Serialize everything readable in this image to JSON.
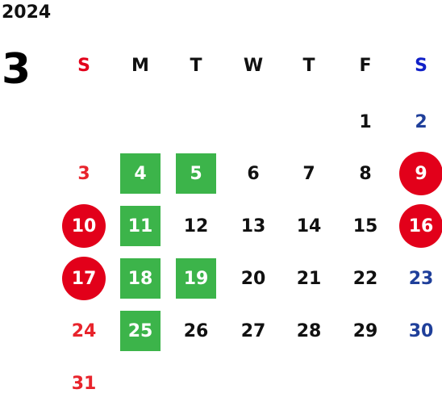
{
  "calendar": {
    "year": "2024",
    "month": "3",
    "weekdays": [
      "S",
      "M",
      "T",
      "W",
      "T",
      "F",
      "S"
    ],
    "colors": {
      "sunday": "#e8242c",
      "saturday": "#1f3f9a",
      "green_highlight": "#3cb44a",
      "red_highlight": "#e2001a"
    },
    "weeks": [
      [
        "",
        "",
        "",
        "",
        "",
        "1",
        "2"
      ],
      [
        "3",
        "4",
        "5",
        "6",
        "7",
        "8",
        "9"
      ],
      [
        "10",
        "11",
        "12",
        "13",
        "14",
        "15",
        "16"
      ],
      [
        "17",
        "18",
        "19",
        "20",
        "21",
        "22",
        "23"
      ],
      [
        "24",
        "25",
        "26",
        "27",
        "28",
        "29",
        "30"
      ],
      [
        "31",
        "",
        "",
        "",
        "",
        "",
        ""
      ]
    ],
    "green_days": [
      "4",
      "5",
      "11",
      "18",
      "19",
      "25"
    ],
    "red_days": [
      "9",
      "10",
      "16",
      "17"
    ]
  }
}
